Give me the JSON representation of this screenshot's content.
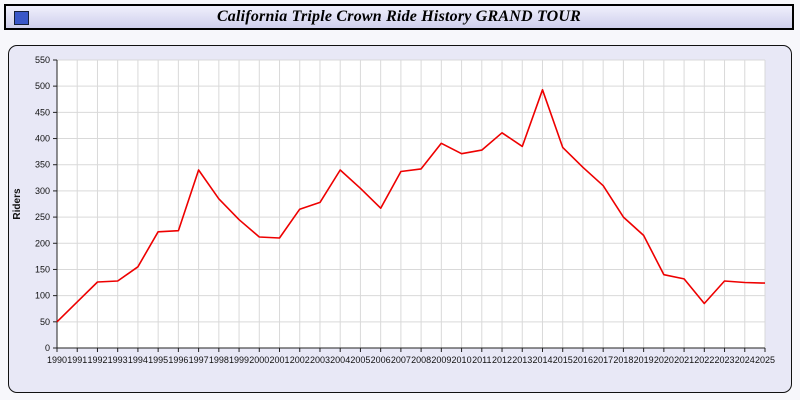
{
  "title": "California Triple Crown Ride History GRAND TOUR",
  "colors": {
    "line": "#ee0000",
    "panel_bg": "#e8e8f6",
    "plot_bg": "#ffffff",
    "grid": "#d9d9d9",
    "axis": "#222222",
    "titlebar_icon": "#3a57c8"
  },
  "chart_data": {
    "type": "line",
    "title": "California Triple Crown Ride History GRAND TOUR",
    "xlabel": "",
    "ylabel": "Riders",
    "ylim": [
      0,
      550
    ],
    "ytick_step": 50,
    "grid": true,
    "legend": "none",
    "x": [
      1990,
      1991,
      1992,
      1993,
      1994,
      1995,
      1996,
      1997,
      1998,
      1999,
      2000,
      2001,
      2002,
      2003,
      2004,
      2005,
      2006,
      2007,
      2008,
      2009,
      2010,
      2011,
      2012,
      2013,
      2014,
      2015,
      2016,
      2017,
      2018,
      2019,
      2020,
      2021,
      2022,
      2023,
      2024,
      2025
    ],
    "series": [
      {
        "name": "Riders",
        "color": "#ee0000",
        "values": [
          50,
          88,
          126,
          128,
          155,
          222,
          224,
          340,
          285,
          245,
          212,
          210,
          265,
          278,
          340,
          305,
          267,
          337,
          342,
          391,
          371,
          378,
          411,
          385,
          493,
          383,
          345,
          310,
          250,
          215,
          140,
          132,
          85,
          128,
          125,
          124
        ]
      }
    ]
  }
}
